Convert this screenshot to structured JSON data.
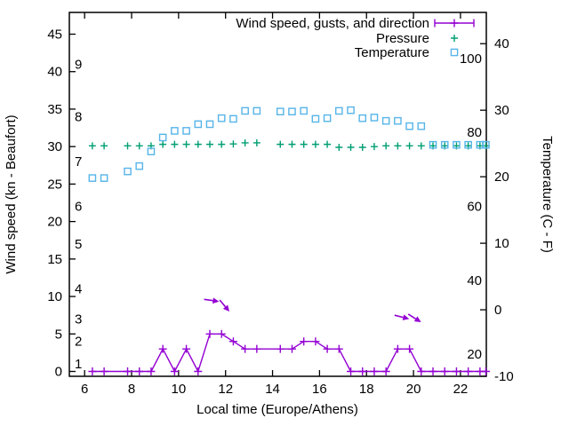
{
  "window": {
    "background": "#ffffff",
    "border_color": "#000000",
    "text_color": "#000000"
  },
  "chart_data": {
    "type": "line",
    "title": "",
    "xlabel": "Local time (Europe/Athens)",
    "ylabel_left": "Wind speed (kn - Beaufort)",
    "ylabel_right": "Temperature (C - F)",
    "grid": false,
    "legend_position": "top-right-inside",
    "xlim": [
      5.35,
      23.1
    ],
    "x_ticks": [
      "6",
      "8",
      "10",
      "12",
      "14",
      "16",
      "18",
      "20",
      "22"
    ],
    "x_tick_values": [
      6,
      8,
      10,
      12,
      14,
      16,
      18,
      20,
      22
    ],
    "left_axis": {
      "unit": "kn",
      "lim": [
        -0.65,
        47.9
      ],
      "ticks": [
        "0",
        "5",
        "10",
        "15",
        "20",
        "25",
        "30",
        "35",
        "40",
        "45"
      ],
      "tick_values": [
        0,
        5,
        10,
        15,
        20,
        25,
        30,
        35,
        40,
        45
      ]
    },
    "beaufort_scale": {
      "labels": [
        "1",
        "2",
        "3",
        "4",
        "5",
        "6",
        "7",
        "8",
        "9"
      ],
      "kn_positions": [
        1,
        4,
        7,
        11,
        17,
        22,
        28,
        34,
        41
      ]
    },
    "right_axis": {
      "unit": "C",
      "lim": [
        -10,
        44.7
      ],
      "ticks": [
        "-10",
        "0",
        "10",
        "20",
        "30",
        "40"
      ],
      "tick_values": [
        -10,
        0,
        10,
        20,
        30,
        40
      ]
    },
    "fahrenheit_scale": {
      "labels": [
        "20",
        "40",
        "60",
        "80",
        "100"
      ],
      "c_positions": [
        -6.67,
        4.44,
        15.56,
        26.67,
        37.78
      ]
    },
    "x": [
      6.33,
      6.83,
      7.83,
      8.33,
      8.83,
      9.33,
      9.83,
      10.33,
      10.83,
      11.33,
      11.83,
      12.33,
      12.83,
      13.33,
      14.33,
      14.83,
      15.33,
      15.83,
      16.33,
      16.83,
      17.33,
      17.83,
      18.33,
      18.83,
      19.33,
      19.83,
      20.33,
      20.83,
      21.33,
      21.83,
      22.33,
      22.83,
      23.08
    ],
    "series": [
      {
        "name": "Wind speed, gusts, and direction",
        "color": "#9400d3",
        "axis": "left",
        "marker": "plus",
        "line": true,
        "legend_marker": "errorbar",
        "values": [
          0,
          0,
          0,
          0,
          0,
          3,
          0,
          3,
          0,
          5,
          5,
          4,
          3,
          3,
          3,
          3,
          4,
          4,
          3,
          3,
          0,
          0,
          0,
          0,
          3,
          3,
          0,
          0,
          0,
          0,
          0,
          0,
          0
        ]
      },
      {
        "name": "Pressure",
        "color": "#009e73",
        "axis": "left",
        "marker": "plus",
        "line": false,
        "legend_marker": "plus",
        "values": [
          30.1,
          30.1,
          30.1,
          30.1,
          30.1,
          30.3,
          30.3,
          30.3,
          30.3,
          30.3,
          30.3,
          30.35,
          30.5,
          30.5,
          30.3,
          30.3,
          30.3,
          30.3,
          30.3,
          29.9,
          29.9,
          29.9,
          30.0,
          30.1,
          30.1,
          30.1,
          30.1,
          30.1,
          30.1,
          30.1,
          30.1,
          30.1,
          30.1
        ]
      },
      {
        "name": "Temperature",
        "color": "#56b4e9",
        "axis": "right",
        "marker": "square",
        "line": false,
        "legend_marker": "square",
        "values": [
          19.8,
          19.8,
          20.8,
          21.6,
          23.8,
          25.9,
          26.9,
          26.9,
          27.9,
          27.9,
          28.8,
          28.7,
          29.9,
          29.9,
          29.8,
          29.8,
          29.9,
          28.7,
          28.8,
          29.9,
          30.0,
          28.8,
          28.9,
          28.4,
          28.4,
          27.6,
          27.6,
          24.8,
          24.8,
          24.8,
          24.8,
          24.8,
          24.8
        ]
      }
    ],
    "wind_direction_arrows": [
      {
        "x": 11.35,
        "kn": 9.5,
        "angle_deg": 8
      },
      {
        "x": 11.92,
        "kn": 8.9,
        "angle_deg": 50
      },
      {
        "x": 19.45,
        "kn": 7.3,
        "angle_deg": 14
      },
      {
        "x": 20.0,
        "kn": 7.2,
        "angle_deg": 32
      }
    ]
  }
}
